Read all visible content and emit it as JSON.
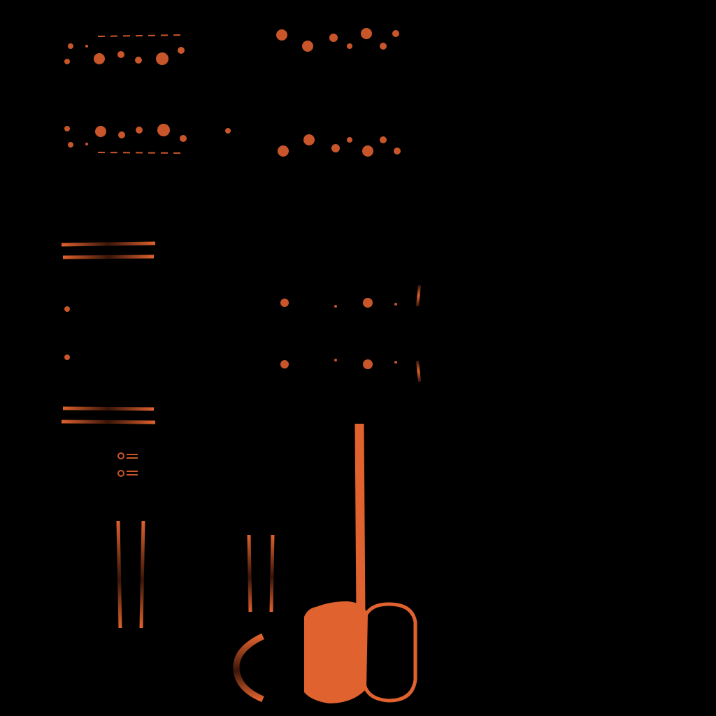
{
  "sheet": {
    "title": "",
    "background": "#000000",
    "accent": "#e0622e",
    "shadow": "#3a1508"
  },
  "elements": [
    {
      "name": "rivet-dots-panel-top-left",
      "kind": "ornament"
    },
    {
      "name": "rivet-dots-panel-top-center",
      "kind": "ornament"
    },
    {
      "name": "slot-lines-cluster",
      "kind": "ornament"
    },
    {
      "name": "bracket-lines-upper-left",
      "kind": "ornament"
    },
    {
      "name": "bracket-lines-lower-left",
      "kind": "ornament"
    },
    {
      "name": "dot-grid-middle",
      "kind": "ornament"
    },
    {
      "name": "vent-bars-right",
      "kind": "ornament"
    },
    {
      "name": "vertical-rails",
      "kind": "ornament"
    },
    {
      "name": "capsule-filled",
      "kind": "shape"
    },
    {
      "name": "capsule-outline",
      "kind": "shape"
    },
    {
      "name": "crosshair-arc",
      "kind": "shape"
    },
    {
      "name": "dash-row-bottom",
      "kind": "ornament"
    }
  ]
}
